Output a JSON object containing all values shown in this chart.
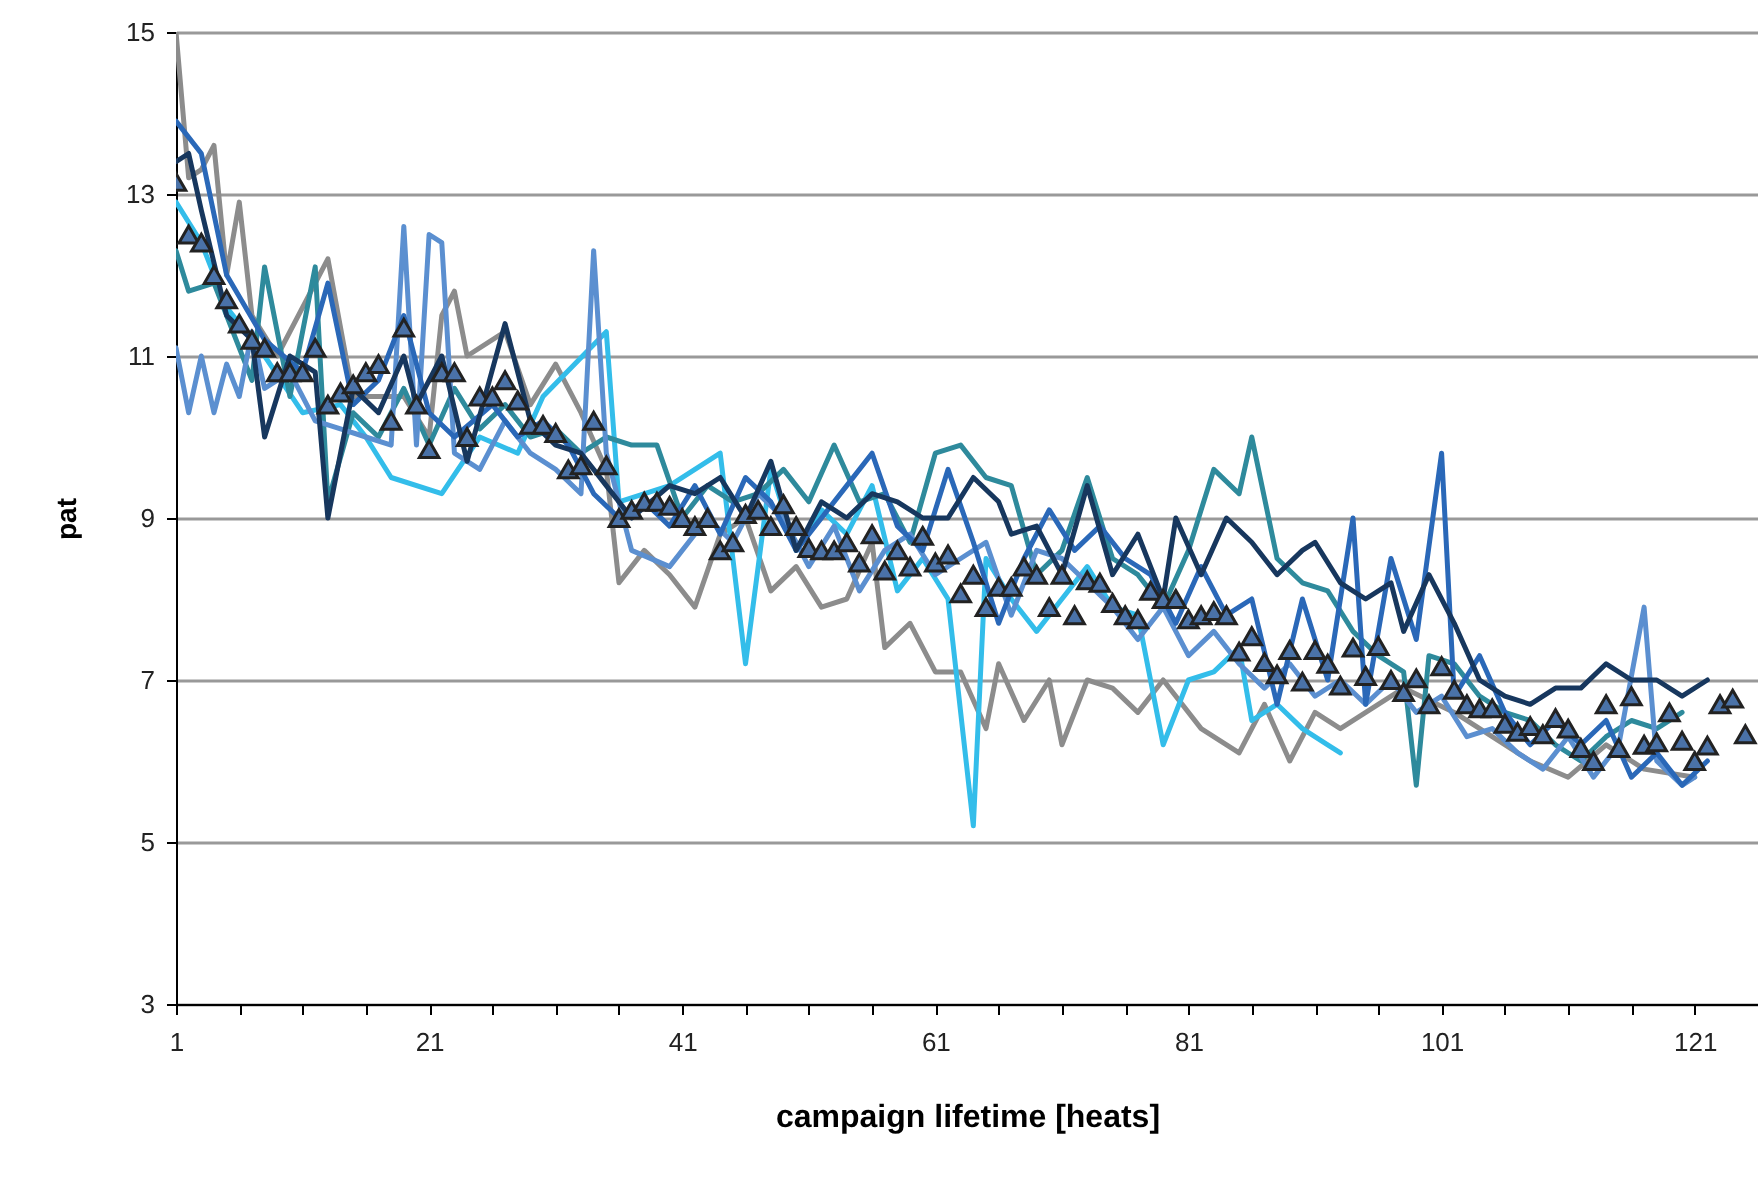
{
  "chart_data": {
    "type": "line",
    "xlabel": "campaign lifetime [heats]",
    "ylabel": "pat",
    "xlim": [
      1,
      126
    ],
    "xticks": [
      1,
      {
        "value": 6,
        "label": null
      },
      {
        "value": 11,
        "label": null
      },
      {
        "value": 16,
        "label": null
      },
      21,
      {
        "value": 26,
        "label": null
      },
      {
        "value": 31,
        "label": null
      },
      {
        "value": 36,
        "label": null
      },
      41,
      {
        "value": 46,
        "label": null
      },
      {
        "value": 51,
        "label": null
      },
      {
        "value": 56,
        "label": null
      },
      61,
      {
        "value": 66,
        "label": null
      },
      {
        "value": 71,
        "label": null
      },
      {
        "value": 76,
        "label": null
      },
      81,
      {
        "value": 86,
        "label": null
      },
      {
        "value": 91,
        "label": null
      },
      {
        "value": 96,
        "label": null
      },
      101,
      {
        "value": 106,
        "label": null
      },
      {
        "value": 111,
        "label": null
      },
      {
        "value": 116,
        "label": null
      },
      121
    ],
    "ylim": [
      3,
      15
    ],
    "yticks": [
      3,
      5,
      7,
      9,
      11,
      13,
      15
    ],
    "grid": "y",
    "line_style": "solid",
    "marker": "none",
    "series": [
      {
        "color": "#8c8c8c",
        "x": [
          1,
          2,
          3,
          4,
          5,
          6,
          7,
          9,
          13,
          15,
          19,
          21,
          22,
          23,
          24,
          27,
          29,
          31,
          33,
          35,
          36,
          38,
          40,
          42,
          44,
          46,
          48,
          50,
          52,
          54,
          56,
          57,
          59,
          61,
          63,
          65,
          66,
          68,
          70,
          71,
          73,
          75,
          77,
          79,
          82,
          85,
          87,
          89,
          91,
          93,
          98,
          102,
          105,
          108,
          111,
          114,
          117,
          121
        ],
        "values": [
          15.0,
          13.2,
          13.3,
          13.6,
          12.0,
          12.9,
          11.5,
          11.0,
          12.2,
          10.5,
          10.5,
          10.0,
          11.5,
          11.8,
          11.0,
          11.3,
          10.4,
          10.9,
          10.3,
          9.6,
          8.2,
          8.6,
          8.3,
          7.9,
          8.8,
          9.0,
          8.1,
          8.4,
          7.9,
          8.0,
          8.7,
          7.4,
          7.7,
          7.1,
          7.1,
          6.4,
          7.2,
          6.5,
          7.0,
          6.2,
          7.0,
          6.9,
          6.6,
          7.0,
          6.4,
          6.1,
          6.7,
          6.0,
          6.6,
          6.4,
          6.9,
          6.6,
          6.3,
          6.0,
          5.8,
          6.2,
          5.9,
          5.8
        ]
      },
      {
        "color": "#33bdea",
        "x": [
          1,
          3,
          5,
          8,
          11,
          14,
          16,
          18,
          22,
          25,
          28,
          30,
          35,
          36,
          40,
          44,
          46,
          48,
          50,
          52,
          54,
          56,
          58,
          60,
          62,
          64,
          65,
          67,
          69,
          71,
          73,
          75,
          77,
          79,
          81,
          83,
          85,
          86,
          88,
          90,
          92,
          93
        ],
        "values": [
          12.9,
          12.4,
          11.6,
          11.0,
          10.3,
          10.4,
          10.0,
          9.5,
          9.3,
          10.0,
          9.8,
          10.5,
          11.3,
          9.2,
          9.4,
          9.8,
          7.2,
          9.6,
          8.6,
          9.1,
          8.8,
          9.4,
          8.1,
          8.5,
          8.0,
          5.2,
          8.5,
          8.0,
          7.6,
          8.0,
          8.4,
          7.9,
          7.8,
          6.2,
          7.0,
          7.1,
          7.4,
          6.5,
          6.7,
          6.4,
          6.2,
          6.1
        ]
      },
      {
        "color": "#2e8a9c",
        "x": [
          1,
          2,
          4,
          5,
          7,
          8,
          10,
          12,
          13,
          15,
          17,
          19,
          21,
          23,
          25,
          27,
          29,
          31,
          33,
          35,
          37,
          39,
          41,
          43,
          45,
          47,
          49,
          51,
          53,
          55,
          57,
          59,
          61,
          63,
          65,
          67,
          69,
          71,
          73,
          75,
          77,
          79,
          81,
          83,
          85,
          86,
          88,
          90,
          92,
          94,
          96,
          98,
          99,
          100,
          102,
          104,
          106,
          108,
          110,
          112,
          114,
          116,
          118,
          120
        ],
        "values": [
          12.3,
          11.8,
          11.9,
          11.5,
          10.7,
          12.1,
          10.5,
          12.1,
          9.2,
          10.3,
          10.0,
          10.6,
          9.9,
          10.6,
          10.1,
          10.4,
          10.0,
          10.1,
          9.8,
          10.0,
          9.9,
          9.9,
          9.0,
          9.4,
          9.2,
          9.3,
          9.6,
          9.2,
          9.9,
          9.2,
          9.3,
          8.7,
          9.8,
          9.9,
          9.5,
          9.4,
          8.3,
          8.6,
          9.5,
          8.5,
          8.3,
          7.9,
          8.6,
          9.6,
          9.3,
          10.0,
          8.5,
          8.2,
          8.1,
          7.6,
          7.3,
          7.1,
          5.7,
          7.3,
          7.2,
          6.8,
          6.6,
          6.5,
          6.2,
          6.0,
          6.3,
          6.5,
          6.4,
          6.6
        ]
      },
      {
        "color": "#5b8fd0",
        "x": [
          1,
          2,
          3,
          4,
          5,
          6,
          7,
          8,
          10,
          12,
          14,
          16,
          18,
          19,
          20,
          21,
          22,
          23,
          25,
          27,
          29,
          31,
          33,
          34,
          35,
          37,
          40,
          43,
          45,
          47,
          49,
          51,
          53,
          55,
          57,
          59,
          61,
          63,
          65,
          67,
          69,
          71,
          73,
          75,
          77,
          79,
          81,
          83,
          85,
          87,
          89,
          91,
          93,
          95,
          97,
          99,
          101,
          103,
          105,
          107,
          109,
          111,
          113,
          115,
          117,
          118,
          120,
          121
        ],
        "values": [
          11.1,
          10.3,
          11.0,
          10.3,
          10.9,
          10.5,
          11.3,
          10.6,
          10.8,
          10.2,
          10.1,
          10.0,
          9.9,
          12.6,
          9.9,
          12.5,
          12.4,
          9.8,
          9.6,
          10.2,
          9.8,
          9.6,
          9.3,
          12.3,
          9.8,
          8.6,
          8.4,
          9.0,
          8.7,
          9.3,
          9.0,
          8.4,
          8.9,
          8.1,
          8.6,
          8.8,
          8.3,
          8.5,
          8.7,
          7.8,
          8.6,
          8.5,
          8.2,
          7.9,
          7.5,
          7.9,
          7.3,
          7.6,
          7.2,
          6.9,
          7.2,
          6.8,
          7.0,
          6.7,
          7.0,
          6.6,
          6.8,
          6.3,
          6.4,
          6.1,
          5.9,
          6.3,
          5.8,
          6.2,
          7.9,
          6.0,
          5.7,
          5.8
        ]
      },
      {
        "color": "#2a68b8",
        "x": [
          1,
          3,
          5,
          8,
          11,
          13,
          15,
          17,
          19,
          21,
          23,
          26,
          28,
          30,
          32,
          34,
          36,
          38,
          40,
          42,
          44,
          46,
          48,
          50,
          52,
          54,
          56,
          58,
          60,
          62,
          64,
          66,
          68,
          70,
          72,
          74,
          76,
          78,
          80,
          82,
          84,
          86,
          88,
          90,
          92,
          94,
          95,
          97,
          99,
          101,
          102,
          104,
          106,
          108,
          110,
          112,
          114,
          116,
          118,
          120,
          122
        ],
        "values": [
          13.9,
          13.5,
          12.0,
          11.2,
          10.8,
          11.9,
          10.4,
          10.7,
          11.5,
          10.3,
          10.0,
          10.4,
          10.0,
          10.2,
          9.9,
          9.3,
          9.0,
          9.2,
          8.9,
          9.4,
          8.8,
          9.5,
          9.2,
          8.6,
          9.0,
          9.4,
          9.8,
          8.9,
          8.6,
          9.6,
          8.7,
          7.7,
          8.5,
          9.1,
          8.6,
          8.9,
          8.5,
          8.3,
          7.7,
          8.4,
          7.8,
          8.0,
          6.7,
          8.0,
          7.0,
          9.0,
          6.7,
          8.5,
          7.5,
          9.8,
          6.8,
          7.3,
          6.6,
          6.2,
          6.5,
          6.2,
          6.5,
          5.8,
          6.1,
          5.7,
          6.0
        ]
      },
      {
        "color": "#17375e",
        "x": [
          1,
          2,
          3,
          5,
          7,
          8,
          10,
          12,
          13,
          15,
          17,
          19,
          20,
          22,
          24,
          27,
          29,
          31,
          33,
          35,
          37,
          40,
          42,
          44,
          46,
          48,
          50,
          52,
          54,
          56,
          58,
          60,
          62,
          64,
          66,
          67,
          69,
          71,
          73,
          75,
          77,
          79,
          80,
          82,
          84,
          86,
          88,
          90,
          91,
          93,
          95,
          97,
          98,
          100,
          102,
          104,
          106,
          108,
          110,
          112,
          114,
          116,
          118,
          120,
          122
        ],
        "values": [
          13.4,
          13.5,
          12.8,
          11.5,
          11.2,
          10.0,
          11.0,
          10.8,
          9.0,
          10.6,
          10.3,
          11.0,
          10.4,
          11.0,
          9.7,
          11.4,
          10.2,
          9.9,
          9.8,
          9.4,
          9.0,
          9.4,
          9.3,
          9.5,
          9.0,
          9.7,
          8.6,
          9.2,
          9.0,
          9.3,
          9.2,
          9.0,
          9.0,
          9.5,
          9.2,
          8.8,
          8.9,
          8.3,
          9.4,
          8.3,
          8.8,
          8.0,
          9.0,
          8.3,
          9.0,
          8.7,
          8.3,
          8.6,
          8.7,
          8.2,
          8.0,
          8.2,
          7.6,
          8.3,
          7.7,
          7.0,
          6.8,
          6.7,
          6.9,
          6.9,
          7.2,
          7.0,
          7.0,
          6.8,
          7.0
        ]
      },
      {
        "type": "scatter",
        "marker": "triangle",
        "color": "#4a72a8",
        "x": [
          1,
          2,
          3,
          4,
          5,
          6,
          7,
          8,
          9,
          10,
          11,
          12,
          13,
          14,
          15,
          16,
          17,
          18,
          19,
          20,
          21,
          22,
          23,
          24,
          25,
          26,
          27,
          28,
          29,
          30,
          31,
          32,
          33,
          34,
          35,
          36,
          37,
          38,
          39,
          40,
          41,
          42,
          43,
          44,
          45,
          46,
          47,
          48,
          49,
          50,
          51,
          52,
          53,
          54,
          55,
          56,
          57,
          58,
          59,
          60,
          61,
          62,
          63,
          64,
          65,
          66,
          67,
          68,
          69,
          70,
          71,
          72,
          73,
          74,
          75,
          76,
          77,
          78,
          79,
          80,
          81,
          82,
          83,
          84,
          85,
          86,
          87,
          88,
          89,
          90,
          91,
          92,
          93,
          94,
          95,
          96,
          97,
          98,
          99,
          100,
          101,
          102,
          103,
          104,
          105,
          106,
          107,
          108,
          109,
          110,
          111,
          112,
          113,
          114,
          115,
          116,
          117,
          118,
          119,
          120,
          121,
          122,
          123,
          124,
          125
        ],
        "values": [
          13.15,
          12.5,
          12.4,
          12.0,
          11.7,
          11.4,
          11.2,
          11.1,
          10.8,
          10.8,
          10.8,
          11.1,
          10.4,
          10.55,
          10.65,
          10.8,
          10.9,
          10.2,
          11.35,
          10.4,
          9.85,
          10.8,
          10.8,
          10.0,
          10.5,
          10.5,
          10.7,
          10.45,
          10.15,
          10.15,
          10.05,
          9.6,
          9.65,
          10.2,
          9.65,
          9.0,
          9.1,
          9.2,
          9.2,
          9.15,
          9.0,
          8.9,
          9.0,
          8.6,
          8.7,
          9.05,
          9.1,
          8.9,
          9.17,
          8.9,
          8.63,
          8.6,
          8.6,
          8.7,
          8.45,
          8.8,
          8.35,
          8.6,
          8.4,
          8.78,
          8.45,
          8.55,
          8.07,
          8.3,
          7.9,
          8.15,
          8.15,
          8.4,
          8.3,
          7.9,
          8.3,
          7.8,
          8.23,
          8.2,
          7.95,
          7.8,
          7.75,
          8.1,
          8.0,
          8.0,
          7.75,
          7.8,
          7.85,
          7.8,
          7.35,
          7.54,
          7.22,
          7.07,
          7.37,
          6.98,
          7.37,
          7.2,
          6.93,
          7.4,
          7.05,
          7.42,
          7.0,
          6.85,
          7.02,
          6.7,
          7.17,
          6.88,
          6.7,
          6.65,
          6.65,
          6.46,
          6.36,
          6.43,
          6.33,
          6.53,
          6.4,
          6.16,
          6.0,
          6.7,
          6.16,
          6.8,
          6.2,
          6.23,
          6.6,
          6.25,
          6.0,
          6.19,
          6.7,
          6.77,
          6.33
        ]
      }
    ]
  }
}
